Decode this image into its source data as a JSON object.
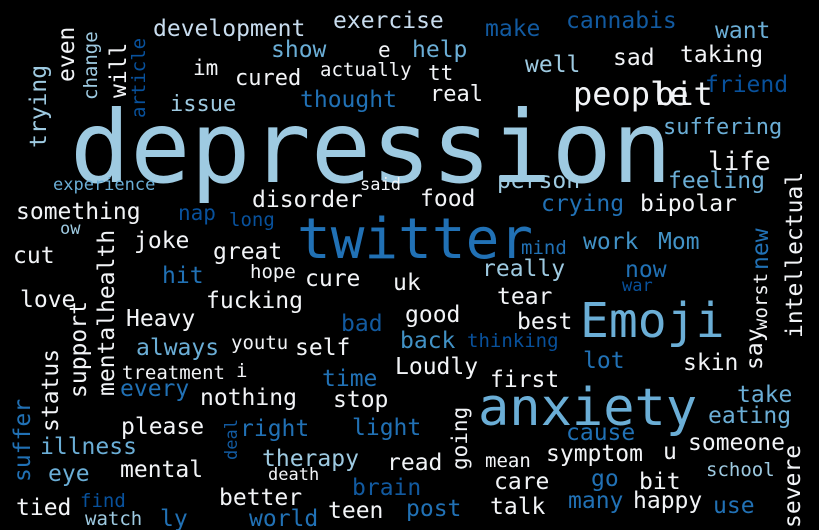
{
  "palette": {
    "background": "#000000",
    "white": "#f2f4f7",
    "pale_blue": "#c8dcee",
    "light_blue": "#9ecae1",
    "mid_blue": "#6baed6",
    "blue": "#4292c6",
    "deep_blue": "#2171b5",
    "dark_blue": "#125aa0",
    "navy": "#08519c"
  },
  "words": [
    {
      "text": "depression",
      "weight": 1.0,
      "color": "light_blue"
    },
    {
      "text": "twitter",
      "weight": 0.62,
      "color": "deep_blue"
    },
    {
      "text": "anxiety",
      "weight": 0.58,
      "color": "mid_blue"
    },
    {
      "text": "Emoji",
      "weight": 0.55,
      "color": "mid_blue"
    },
    {
      "text": "people",
      "weight": 0.4,
      "color": "white"
    },
    {
      "text": "bit",
      "weight": 0.35,
      "color": "white"
    },
    {
      "text": "life",
      "weight": 0.3,
      "color": "white"
    },
    {
      "text": "exercise",
      "weight": 0.25,
      "color": "pale_blue"
    },
    {
      "text": "cannabis",
      "weight": 0.25,
      "color": "dark_blue"
    },
    {
      "text": "development",
      "weight": 0.25,
      "color": "pale_blue"
    },
    {
      "text": "make",
      "weight": 0.25,
      "color": "dark_blue"
    },
    {
      "text": "want",
      "weight": 0.25,
      "color": "mid_blue"
    },
    {
      "text": "show",
      "weight": 0.25,
      "color": "mid_blue"
    },
    {
      "text": "help",
      "weight": 0.25,
      "color": "mid_blue"
    },
    {
      "text": "well",
      "weight": 0.25,
      "color": "light_blue"
    },
    {
      "text": "sad",
      "weight": 0.25,
      "color": "white"
    },
    {
      "text": "taking",
      "weight": 0.25,
      "color": "white"
    },
    {
      "text": "friend",
      "weight": 0.25,
      "color": "navy"
    },
    {
      "text": "thought",
      "weight": 0.25,
      "color": "deep_blue"
    },
    {
      "text": "real",
      "weight": 0.23,
      "color": "white"
    },
    {
      "text": "issue",
      "weight": 0.23,
      "color": "light_blue"
    },
    {
      "text": "cured",
      "weight": 0.23,
      "color": "white"
    },
    {
      "text": "im",
      "weight": 0.22,
      "color": "white"
    },
    {
      "text": "actually",
      "weight": 0.2,
      "color": "white"
    },
    {
      "text": "tt",
      "weight": 0.22,
      "color": "white"
    },
    {
      "text": "e",
      "weight": 0.22,
      "color": "white"
    },
    {
      "text": "suffering",
      "weight": 0.24,
      "color": "mid_blue"
    },
    {
      "text": "experience",
      "weight": 0.18,
      "color": "mid_blue"
    },
    {
      "text": "said",
      "weight": 0.18,
      "color": "white"
    },
    {
      "text": "food",
      "weight": 0.25,
      "color": "white"
    },
    {
      "text": "person",
      "weight": 0.25,
      "color": "light_blue"
    },
    {
      "text": "feeling",
      "weight": 0.25,
      "color": "mid_blue"
    },
    {
      "text": "disorder",
      "weight": 0.25,
      "color": "white"
    },
    {
      "text": "something",
      "weight": 0.25,
      "color": "white"
    },
    {
      "text": "nap",
      "weight": 0.22,
      "color": "navy"
    },
    {
      "text": "long",
      "weight": 0.2,
      "color": "navy"
    },
    {
      "text": "crying",
      "weight": 0.25,
      "color": "deep_blue"
    },
    {
      "text": "bipolar",
      "weight": 0.25,
      "color": "white"
    },
    {
      "text": "ow",
      "weight": 0.18,
      "color": "light_blue"
    },
    {
      "text": "joke",
      "weight": 0.25,
      "color": "white"
    },
    {
      "text": "great",
      "weight": 0.25,
      "color": "white"
    },
    {
      "text": "mind",
      "weight": 0.2,
      "color": "deep_blue"
    },
    {
      "text": "work",
      "weight": 0.25,
      "color": "blue"
    },
    {
      "text": "Mom",
      "weight": 0.25,
      "color": "blue"
    },
    {
      "text": "new",
      "weight": 0.25,
      "color": "deep_blue"
    },
    {
      "text": "cut",
      "weight": 0.25,
      "color": "white"
    },
    {
      "text": "hit",
      "weight": 0.25,
      "color": "deep_blue"
    },
    {
      "text": "hope",
      "weight": 0.2,
      "color": "white"
    },
    {
      "text": "cure",
      "weight": 0.25,
      "color": "white"
    },
    {
      "text": "uk",
      "weight": 0.25,
      "color": "white"
    },
    {
      "text": "really",
      "weight": 0.25,
      "color": "light_blue"
    },
    {
      "text": "now",
      "weight": 0.25,
      "color": "deep_blue"
    },
    {
      "text": "war",
      "weight": 0.18,
      "color": "navy"
    },
    {
      "text": "love",
      "weight": 0.25,
      "color": "white"
    },
    {
      "text": "fucking",
      "weight": 0.25,
      "color": "white"
    },
    {
      "text": "tear",
      "weight": 0.25,
      "color": "white"
    },
    {
      "text": "Heavy",
      "weight": 0.25,
      "color": "white"
    },
    {
      "text": "good",
      "weight": 0.25,
      "color": "white"
    },
    {
      "text": "best",
      "weight": 0.25,
      "color": "white"
    },
    {
      "text": "bad",
      "weight": 0.25,
      "color": "dark_blue"
    },
    {
      "text": "back",
      "weight": 0.25,
      "color": "blue"
    },
    {
      "text": "thinking",
      "weight": 0.2,
      "color": "navy"
    },
    {
      "text": "always",
      "weight": 0.25,
      "color": "mid_blue"
    },
    {
      "text": "youtu",
      "weight": 0.2,
      "color": "white"
    },
    {
      "text": "self",
      "weight": 0.25,
      "color": "white"
    },
    {
      "text": "lot",
      "weight": 0.25,
      "color": "deep_blue"
    },
    {
      "text": "skin",
      "weight": 0.25,
      "color": "white"
    },
    {
      "text": "treatment",
      "weight": 0.2,
      "color": "white"
    },
    {
      "text": "i",
      "weight": 0.2,
      "color": "white"
    },
    {
      "text": "Loudly",
      "weight": 0.25,
      "color": "white"
    },
    {
      "text": "time",
      "weight": 0.25,
      "color": "deep_blue"
    },
    {
      "text": "first",
      "weight": 0.25,
      "color": "white"
    },
    {
      "text": "every",
      "weight": 0.25,
      "color": "deep_blue"
    },
    {
      "text": "nothing",
      "weight": 0.25,
      "color": "white"
    },
    {
      "text": "stop",
      "weight": 0.25,
      "color": "white"
    },
    {
      "text": "take",
      "weight": 0.25,
      "color": "mid_blue"
    },
    {
      "text": "eating",
      "weight": 0.25,
      "color": "mid_blue"
    },
    {
      "text": "please",
      "weight": 0.25,
      "color": "white"
    },
    {
      "text": "right",
      "weight": 0.25,
      "color": "deep_blue"
    },
    {
      "text": "light",
      "weight": 0.25,
      "color": "deep_blue"
    },
    {
      "text": "cause",
      "weight": 0.25,
      "color": "deep_blue"
    },
    {
      "text": "illness",
      "weight": 0.25,
      "color": "mid_blue"
    },
    {
      "text": "someone",
      "weight": 0.25,
      "color": "white"
    },
    {
      "text": "mental",
      "weight": 0.25,
      "color": "white"
    },
    {
      "text": "therapy",
      "weight": 0.25,
      "color": "light_blue"
    },
    {
      "text": "read",
      "weight": 0.25,
      "color": "white"
    },
    {
      "text": "symptom",
      "weight": 0.25,
      "color": "white"
    },
    {
      "text": "u",
      "weight": 0.25,
      "color": "white"
    },
    {
      "text": "eye",
      "weight": 0.25,
      "color": "mid_blue"
    },
    {
      "text": "mean",
      "weight": 0.2,
      "color": "white"
    },
    {
      "text": "school",
      "weight": 0.2,
      "color": "light_blue"
    },
    {
      "text": "death",
      "weight": 0.18,
      "color": "white"
    },
    {
      "text": "brain",
      "weight": 0.25,
      "color": "dark_blue"
    },
    {
      "text": "care",
      "weight": 0.25,
      "color": "white"
    },
    {
      "text": "go",
      "weight": 0.25,
      "color": "deep_blue"
    },
    {
      "text": "tied",
      "weight": 0.25,
      "color": "white"
    },
    {
      "text": "find",
      "weight": 0.2,
      "color": "navy"
    },
    {
      "text": "better",
      "weight": 0.25,
      "color": "white"
    },
    {
      "text": "teen",
      "weight": 0.25,
      "color": "white"
    },
    {
      "text": "post",
      "weight": 0.25,
      "color": "deep_blue"
    },
    {
      "text": "talk",
      "weight": 0.25,
      "color": "white"
    },
    {
      "text": "many",
      "weight": 0.25,
      "color": "deep_blue"
    },
    {
      "text": "happy",
      "weight": 0.25,
      "color": "white"
    },
    {
      "text": "use",
      "weight": 0.25,
      "color": "deep_blue"
    },
    {
      "text": "watch",
      "weight": 0.2,
      "color": "light_blue"
    },
    {
      "text": "ly",
      "weight": 0.25,
      "color": "deep_blue"
    },
    {
      "text": "world",
      "weight": 0.25,
      "color": "deep_blue"
    },
    {
      "text": "trying",
      "weight": 0.25,
      "color": "light_blue"
    },
    {
      "text": "even",
      "weight": 0.25,
      "color": "white"
    },
    {
      "text": "change",
      "weight": 0.2,
      "color": "light_blue"
    },
    {
      "text": "article",
      "weight": 0.2,
      "color": "navy"
    },
    {
      "text": "will",
      "weight": 0.25,
      "color": "white"
    },
    {
      "text": "intellectual",
      "weight": 0.25,
      "color": "white"
    },
    {
      "text": "worst",
      "weight": 0.2,
      "color": "white"
    },
    {
      "text": "say",
      "weight": 0.25,
      "color": "white"
    },
    {
      "text": "support",
      "weight": 0.25,
      "color": "white"
    },
    {
      "text": "mentalhealth",
      "weight": 0.25,
      "color": "white"
    },
    {
      "text": "status",
      "weight": 0.25,
      "color": "white"
    },
    {
      "text": "suffer",
      "weight": 0.25,
      "color": "deep_blue"
    },
    {
      "text": "going",
      "weight": 0.22,
      "color": "white"
    },
    {
      "text": "deal",
      "weight": 0.18,
      "color": "dark_blue"
    },
    {
      "text": "severe",
      "weight": 0.25,
      "color": "white"
    }
  ]
}
